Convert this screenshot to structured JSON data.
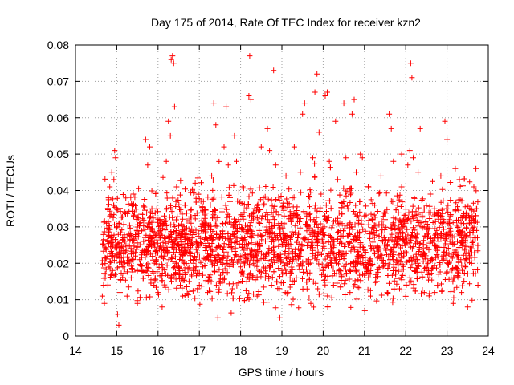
{
  "chart_data": {
    "type": "scatter",
    "title": "Day 175 of 2014, Rate Of TEC Index for receiver kzn2",
    "xlabel": "GPS time / hours",
    "ylabel": "ROTI / TECUs",
    "xlim": [
      14,
      24
    ],
    "ylim": [
      0,
      0.08
    ],
    "xticks": [
      "14",
      "15",
      "16",
      "17",
      "18",
      "19",
      "20",
      "21",
      "22",
      "23",
      "24"
    ],
    "yticks": [
      "0",
      "0.01",
      "0.02",
      "0.03",
      "0.04",
      "0.05",
      "0.06",
      "0.07",
      "0.08"
    ],
    "xtick_values": [
      14,
      15,
      16,
      17,
      18,
      19,
      20,
      21,
      22,
      23,
      24
    ],
    "ytick_values": [
      0,
      0.01,
      0.02,
      0.03,
      0.04,
      0.05,
      0.06,
      0.07,
      0.08
    ],
    "grid": true,
    "marker": "plus",
    "color": "#ff0000",
    "series": [
      {
        "name": "ROTI",
        "points": [
          [
            14.65,
            0.011
          ],
          [
            14.68,
            0.014
          ],
          [
            14.7,
            0.009
          ],
          [
            14.72,
            0.016
          ],
          [
            14.75,
            0.031
          ],
          [
            14.78,
            0.022
          ],
          [
            14.8,
            0.038
          ],
          [
            14.83,
            0.041
          ],
          [
            14.86,
            0.027
          ],
          [
            14.88,
            0.045
          ],
          [
            14.9,
            0.018
          ],
          [
            14.93,
            0.043
          ],
          [
            14.95,
            0.051
          ],
          [
            14.97,
            0.049
          ],
          [
            15.0,
            0.035
          ],
          [
            15.02,
            0.006
          ],
          [
            15.05,
            0.003
          ],
          [
            15.08,
            0.012
          ],
          [
            15.12,
            0.025
          ],
          [
            15.15,
            0.019
          ],
          [
            15.2,
            0.034
          ],
          [
            15.25,
            0.011
          ],
          [
            15.3,
            0.028
          ],
          [
            15.35,
            0.016
          ],
          [
            15.4,
            0.039
          ],
          [
            15.45,
            0.022
          ],
          [
            15.5,
            0.009
          ],
          [
            15.55,
            0.031
          ],
          [
            15.6,
            0.018
          ],
          [
            15.65,
            0.026
          ],
          [
            15.7,
            0.054
          ],
          [
            15.75,
            0.047
          ],
          [
            15.8,
            0.052
          ],
          [
            15.85,
            0.035
          ],
          [
            15.9,
            0.014
          ],
          [
            15.95,
            0.021
          ],
          [
            16.0,
            0.012
          ],
          [
            16.05,
            0.029
          ],
          [
            16.1,
            0.008
          ],
          [
            16.15,
            0.033
          ],
          [
            16.2,
            0.048
          ],
          [
            16.25,
            0.059
          ],
          [
            16.3,
            0.055
          ],
          [
            16.32,
            0.076
          ],
          [
            16.35,
            0.077
          ],
          [
            16.38,
            0.075
          ],
          [
            16.4,
            0.063
          ],
          [
            16.45,
            0.041
          ],
          [
            16.5,
            0.019
          ],
          [
            16.55,
            0.027
          ],
          [
            16.6,
            0.011
          ],
          [
            16.65,
            0.036
          ],
          [
            16.7,
            0.023
          ],
          [
            16.75,
            0.015
          ],
          [
            16.8,
            0.031
          ],
          [
            16.85,
            0.018
          ],
          [
            16.9,
            0.042
          ],
          [
            16.95,
            0.025
          ],
          [
            17.0,
            0.014
          ],
          [
            17.05,
            0.029
          ],
          [
            17.1,
            0.037
          ],
          [
            17.15,
            0.021
          ],
          [
            17.2,
            0.012
          ],
          [
            17.25,
            0.027
          ],
          [
            17.3,
            0.044
          ],
          [
            17.35,
            0.064
          ],
          [
            17.4,
            0.058
          ],
          [
            17.45,
            0.005
          ],
          [
            17.5,
            0.021
          ],
          [
            17.55,
            0.035
          ],
          [
            17.6,
            0.052
          ],
          [
            17.65,
            0.063
          ],
          [
            17.7,
            0.047
          ],
          [
            17.75,
            0.026
          ],
          [
            17.8,
            0.013
          ],
          [
            17.85,
            0.055
          ],
          [
            17.9,
            0.048
          ],
          [
            17.95,
            0.032
          ],
          [
            18.0,
            0.019
          ],
          [
            18.05,
            0.041
          ],
          [
            18.1,
            0.027
          ],
          [
            18.15,
            0.015
          ],
          [
            18.2,
            0.066
          ],
          [
            18.22,
            0.077
          ],
          [
            18.25,
            0.065
          ],
          [
            18.3,
            0.033
          ],
          [
            18.35,
            0.022
          ],
          [
            18.4,
            0.011
          ],
          [
            18.45,
            0.029
          ],
          [
            18.5,
            0.052
          ],
          [
            18.55,
            0.038
          ],
          [
            18.6,
            0.016
          ],
          [
            18.65,
            0.057
          ],
          [
            18.7,
            0.051
          ],
          [
            18.75,
            0.034
          ],
          [
            18.8,
            0.073
          ],
          [
            18.85,
            0.047
          ],
          [
            18.9,
            0.022
          ],
          [
            18.95,
            0.005
          ],
          [
            19.0,
            0.018
          ],
          [
            19.05,
            0.031
          ],
          [
            19.1,
            0.044
          ],
          [
            19.15,
            0.012
          ],
          [
            19.2,
            0.027
          ],
          [
            19.25,
            0.038
          ],
          [
            19.3,
            0.052
          ],
          [
            19.35,
            0.016
          ],
          [
            19.4,
            0.024
          ],
          [
            19.45,
            0.045
          ],
          [
            19.5,
            0.061
          ],
          [
            19.55,
            0.064
          ],
          [
            19.6,
            0.033
          ],
          [
            19.65,
            0.021
          ],
          [
            19.7,
            0.009
          ],
          [
            19.75,
            0.049
          ],
          [
            19.8,
            0.067
          ],
          [
            19.85,
            0.072
          ],
          [
            19.9,
            0.056
          ],
          [
            19.95,
            0.039
          ],
          [
            20.0,
            0.018
          ],
          [
            20.05,
            0.066
          ],
          [
            20.1,
            0.067
          ],
          [
            20.15,
            0.048
          ],
          [
            20.2,
            0.027
          ],
          [
            20.25,
            0.014
          ],
          [
            20.3,
            0.059
          ],
          [
            20.35,
            0.043
          ],
          [
            20.4,
            0.031
          ],
          [
            20.45,
            0.022
          ],
          [
            20.5,
            0.064
          ],
          [
            20.55,
            0.049
          ],
          [
            20.6,
            0.035
          ],
          [
            20.65,
            0.012
          ],
          [
            20.7,
            0.061
          ],
          [
            20.75,
            0.065
          ],
          [
            20.8,
            0.045
          ],
          [
            20.85,
            0.027
          ],
          [
            20.9,
            0.05
          ],
          [
            20.95,
            0.049
          ],
          [
            21.0,
            0.033
          ],
          [
            21.05,
            0.019
          ],
          [
            21.1,
            0.041
          ],
          [
            21.15,
            0.011
          ],
          [
            21.2,
            0.028
          ],
          [
            21.25,
            0.036
          ],
          [
            21.3,
            0.015
          ],
          [
            21.35,
            0.024
          ],
          [
            21.4,
            0.044
          ],
          [
            21.45,
            0.019
          ],
          [
            21.5,
            0.032
          ],
          [
            21.55,
            0.012
          ],
          [
            21.6,
            0.061
          ],
          [
            21.65,
            0.057
          ],
          [
            21.7,
            0.048
          ],
          [
            21.75,
            0.027
          ],
          [
            21.8,
            0.036
          ],
          [
            21.85,
            0.013
          ],
          [
            21.9,
            0.041
          ],
          [
            21.95,
            0.022
          ],
          [
            22.0,
            0.031
          ],
          [
            22.05,
            0.047
          ],
          [
            22.1,
            0.051
          ],
          [
            22.12,
            0.075
          ],
          [
            22.15,
            0.071
          ],
          [
            22.18,
            0.049
          ],
          [
            22.2,
            0.038
          ],
          [
            22.25,
            0.027
          ],
          [
            22.3,
            0.045
          ],
          [
            22.35,
            0.057
          ],
          [
            22.4,
            0.033
          ],
          [
            22.45,
            0.012
          ],
          [
            22.5,
            0.025
          ],
          [
            22.55,
            0.018
          ],
          [
            22.6,
            0.039
          ],
          [
            22.65,
            0.021
          ],
          [
            22.7,
            0.012
          ],
          [
            22.75,
            0.029
          ],
          [
            22.8,
            0.017
          ],
          [
            22.85,
            0.044
          ],
          [
            22.9,
            0.035
          ],
          [
            22.95,
            0.059
          ],
          [
            23.0,
            0.054
          ],
          [
            23.05,
            0.031
          ],
          [
            23.1,
            0.016
          ],
          [
            23.15,
            0.009
          ],
          [
            23.2,
            0.046
          ],
          [
            23.25,
            0.026
          ],
          [
            23.3,
            0.043
          ],
          [
            23.35,
            0.012
          ],
          [
            23.4,
            0.033
          ],
          [
            23.45,
            0.019
          ],
          [
            23.5,
            0.008
          ],
          [
            23.55,
            0.031
          ],
          [
            23.6,
            0.024
          ],
          [
            23.65,
            0.041
          ],
          [
            23.7,
            0.046
          ],
          [
            23.72,
            0.035
          ],
          [
            23.75,
            0.014
          ]
        ],
        "dense_band": {
          "x_range": [
            14.65,
            23.75
          ],
          "y_lower_typical": 0.005,
          "y_upper_typical": 0.04,
          "y_center_typical": 0.02
        }
      }
    ]
  }
}
